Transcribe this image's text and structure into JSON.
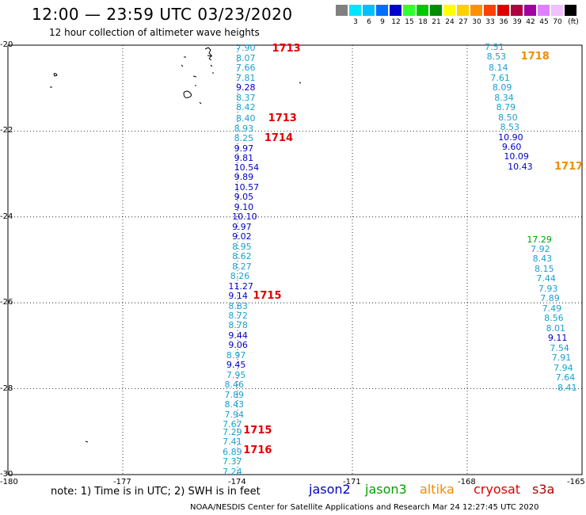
{
  "header": {
    "title": "12:00 — 23:59 UTC 03/23/2020",
    "subtitle": "12 hour collection of altimeter wave heights"
  },
  "color_scale": {
    "unit": "(ft)",
    "bins": [
      {
        "color": "#808080",
        "label": ""
      },
      {
        "color": "#00e5ff",
        "label": "3"
      },
      {
        "color": "#00bfff",
        "label": "6"
      },
      {
        "color": "#0070ff",
        "label": "9"
      },
      {
        "color": "#0000d0",
        "label": "12"
      },
      {
        "color": "#30ff30",
        "label": "15"
      },
      {
        "color": "#00c800",
        "label": "18"
      },
      {
        "color": "#008c00",
        "label": "21"
      },
      {
        "color": "#ffff00",
        "label": "24"
      },
      {
        "color": "#ffd000",
        "label": "27"
      },
      {
        "color": "#ff9000",
        "label": "30"
      },
      {
        "color": "#ff4000",
        "label": "33"
      },
      {
        "color": "#e00000",
        "label": "36"
      },
      {
        "color": "#b00040",
        "label": "39"
      },
      {
        "color": "#a000a0",
        "label": "42"
      },
      {
        "color": "#e080ff",
        "label": "45"
      },
      {
        "color": "#f0c0ff",
        "label": "70"
      },
      {
        "color": "#000000",
        "label": ""
      }
    ]
  },
  "axes": {
    "lat_labels": [
      "-20",
      "-22",
      "-24",
      "-26",
      "-28",
      "-30"
    ],
    "lon_labels": [
      "-180",
      "-177",
      "-174",
      "-171",
      "-168",
      "-165"
    ]
  },
  "colors": {
    "light": "#1aa0d0",
    "dark": "#0000c8",
    "green": "#00a000",
    "pass_red": "#e00000",
    "pass_orange": "#f08c00"
  },
  "observations": [
    {
      "t": "7.90",
      "c": "light",
      "lon": -174.0,
      "lat": -20.08
    },
    {
      "t": "8.07",
      "c": "light",
      "lon": -174.0,
      "lat": -20.31
    },
    {
      "t": "7.66",
      "c": "light",
      "lon": -174.0,
      "lat": -20.54
    },
    {
      "t": "7.81",
      "c": "light",
      "lon": -174.0,
      "lat": -20.77
    },
    {
      "t": "9.28",
      "c": "dark",
      "lon": -174.0,
      "lat": -21.0
    },
    {
      "t": "8.37",
      "c": "light",
      "lon": -174.0,
      "lat": -21.23
    },
    {
      "t": "8.42",
      "c": "light",
      "lon": -174.0,
      "lat": -21.46
    },
    {
      "t": "8.40",
      "c": "light",
      "lon": -174.0,
      "lat": -21.72
    },
    {
      "t": "8.93",
      "c": "light",
      "lon": -174.05,
      "lat": -21.95
    },
    {
      "t": "8.25",
      "c": "light",
      "lon": -174.05,
      "lat": -22.18
    },
    {
      "t": "9.97",
      "c": "dark",
      "lon": -174.05,
      "lat": -22.41
    },
    {
      "t": "9.81",
      "c": "dark",
      "lon": -174.05,
      "lat": -22.64
    },
    {
      "t": "10.54",
      "c": "dark",
      "lon": -174.05,
      "lat": -22.86
    },
    {
      "t": "9.89",
      "c": "dark",
      "lon": -174.05,
      "lat": -23.09
    },
    {
      "t": "10.57",
      "c": "dark",
      "lon": -174.05,
      "lat": -23.32
    },
    {
      "t": "9.05",
      "c": "dark",
      "lon": -174.05,
      "lat": -23.55
    },
    {
      "t": "9.10",
      "c": "dark",
      "lon": -174.05,
      "lat": -23.78
    },
    {
      "t": "10.10",
      "c": "dark",
      "lon": -174.1,
      "lat": -24.01
    },
    {
      "t": "9.97",
      "c": "dark",
      "lon": -174.1,
      "lat": -24.24
    },
    {
      "t": "9.02",
      "c": "dark",
      "lon": -174.1,
      "lat": -24.47
    },
    {
      "t": "8.95",
      "c": "light",
      "lon": -174.1,
      "lat": -24.7
    },
    {
      "t": "8.62",
      "c": "light",
      "lon": -174.1,
      "lat": -24.93
    },
    {
      "t": "8.27",
      "c": "light",
      "lon": -174.1,
      "lat": -25.16
    },
    {
      "t": "8.26",
      "c": "light",
      "lon": -174.15,
      "lat": -25.39
    },
    {
      "t": "11.27",
      "c": "dark",
      "lon": -174.2,
      "lat": -25.62
    },
    {
      "t": "9.14",
      "c": "dark",
      "lon": -174.2,
      "lat": -25.85
    },
    {
      "t": "8.83",
      "c": "light",
      "lon": -174.2,
      "lat": -26.08
    },
    {
      "t": "8.72",
      "c": "light",
      "lon": -174.2,
      "lat": -26.31
    },
    {
      "t": "8.78",
      "c": "light",
      "lon": -174.2,
      "lat": -26.54
    },
    {
      "t": "9.44",
      "c": "dark",
      "lon": -174.2,
      "lat": -26.77
    },
    {
      "t": "9.06",
      "c": "dark",
      "lon": -174.2,
      "lat": -27.0
    },
    {
      "t": "8.97",
      "c": "light",
      "lon": -174.25,
      "lat": -27.23
    },
    {
      "t": "9.45",
      "c": "dark",
      "lon": -174.25,
      "lat": -27.46
    },
    {
      "t": "7.95",
      "c": "light",
      "lon": -174.25,
      "lat": -27.69
    },
    {
      "t": "8.46",
      "c": "light",
      "lon": -174.3,
      "lat": -27.92
    },
    {
      "t": "7.89",
      "c": "light",
      "lon": -174.3,
      "lat": -28.15
    },
    {
      "t": "8.43",
      "c": "light",
      "lon": -174.3,
      "lat": -28.38
    },
    {
      "t": "7.94",
      "c": "light",
      "lon": -174.3,
      "lat": -28.61
    },
    {
      "t": "7.67",
      "c": "light",
      "lon": -174.35,
      "lat": -28.84
    },
    {
      "t": "7.29",
      "c": "light",
      "lon": -174.35,
      "lat": -29.02
    },
    {
      "t": "7.41",
      "c": "light",
      "lon": -174.35,
      "lat": -29.25
    },
    {
      "t": "6.89",
      "c": "light",
      "lon": -174.35,
      "lat": -29.48
    },
    {
      "t": "7.37",
      "c": "light",
      "lon": -174.35,
      "lat": -29.71
    },
    {
      "t": "7.24",
      "c": "light",
      "lon": -174.35,
      "lat": -29.94
    },
    {
      "t": "7.51",
      "c": "light",
      "lon": -167.5,
      "lat": -20.05
    },
    {
      "t": "8.53",
      "c": "light",
      "lon": -167.45,
      "lat": -20.28
    },
    {
      "t": "8.14",
      "c": "light",
      "lon": -167.4,
      "lat": -20.54
    },
    {
      "t": "7.61",
      "c": "light",
      "lon": -167.35,
      "lat": -20.77
    },
    {
      "t": "8.09",
      "c": "light",
      "lon": -167.3,
      "lat": -21.0
    },
    {
      "t": "8.34",
      "c": "light",
      "lon": -167.25,
      "lat": -21.23
    },
    {
      "t": "8.79",
      "c": "light",
      "lon": -167.2,
      "lat": -21.46
    },
    {
      "t": "8.50",
      "c": "light",
      "lon": -167.15,
      "lat": -21.69
    },
    {
      "t": "8.53",
      "c": "light",
      "lon": -167.1,
      "lat": -21.92
    },
    {
      "t": "10.90",
      "c": "dark",
      "lon": -167.15,
      "lat": -22.15
    },
    {
      "t": "9.60",
      "c": "dark",
      "lon": -167.05,
      "lat": -22.38
    },
    {
      "t": "10.09",
      "c": "dark",
      "lon": -167.0,
      "lat": -22.61
    },
    {
      "t": "10.43",
      "c": "dark",
      "lon": -166.9,
      "lat": -22.84
    },
    {
      "t": "17.29",
      "c": "green",
      "lon": -166.4,
      "lat": -24.53
    },
    {
      "t": "7.92",
      "c": "light",
      "lon": -166.3,
      "lat": -24.76
    },
    {
      "t": "8.43",
      "c": "light",
      "lon": -166.25,
      "lat": -24.99
    },
    {
      "t": "8.15",
      "c": "light",
      "lon": -166.2,
      "lat": -25.22
    },
    {
      "t": "7.44",
      "c": "light",
      "lon": -166.15,
      "lat": -25.45
    },
    {
      "t": "7.93",
      "c": "light",
      "lon": -166.1,
      "lat": -25.68
    },
    {
      "t": "7.89",
      "c": "light",
      "lon": -166.05,
      "lat": -25.91
    },
    {
      "t": "7.49",
      "c": "light",
      "lon": -166.0,
      "lat": -26.14
    },
    {
      "t": "8.56",
      "c": "light",
      "lon": -165.95,
      "lat": -26.37
    },
    {
      "t": "8.01",
      "c": "light",
      "lon": -165.9,
      "lat": -26.6
    },
    {
      "t": "9.11",
      "c": "dark",
      "lon": -165.85,
      "lat": -26.83
    },
    {
      "t": "7.54",
      "c": "light",
      "lon": -165.8,
      "lat": -27.06
    },
    {
      "t": "7.91",
      "c": "light",
      "lon": -165.75,
      "lat": -27.29
    },
    {
      "t": "7.94",
      "c": "light",
      "lon": -165.7,
      "lat": -27.52
    },
    {
      "t": "7.64",
      "c": "light",
      "lon": -165.65,
      "lat": -27.75
    },
    {
      "t": "8.41",
      "c": "light",
      "lon": -165.6,
      "lat": -27.98
    }
  ],
  "pass_times": [
    {
      "t": "1713",
      "c": "pass_red",
      "lon": -173.1,
      "lat": -20.1
    },
    {
      "t": "1713",
      "c": "pass_red",
      "lon": -173.2,
      "lat": -21.72
    },
    {
      "t": "1714",
      "c": "pass_red",
      "lon": -173.3,
      "lat": -22.18
    },
    {
      "t": "1715",
      "c": "pass_red",
      "lon": -173.6,
      "lat": -25.85
    },
    {
      "t": "1715",
      "c": "pass_red",
      "lon": -173.85,
      "lat": -28.98
    },
    {
      "t": "1716",
      "c": "pass_red",
      "lon": -173.85,
      "lat": -29.45
    },
    {
      "t": "1718",
      "c": "pass_orange",
      "lon": -166.6,
      "lat": -20.28
    },
    {
      "t": "1717",
      "c": "pass_orange",
      "lon": -165.7,
      "lat": -22.84
    }
  ],
  "footer": {
    "note": "note:  1) Time is in UTC; 2) SWH is in feet",
    "satellites": [
      {
        "name": "jason2",
        "color": "#0000c8"
      },
      {
        "name": "jason3",
        "color": "#00a000"
      },
      {
        "name": "altika",
        "color": "#f08c00"
      },
      {
        "name": "cryosat",
        "color": "#e00000"
      },
      {
        "name": "s3a",
        "color": "#b00000"
      }
    ],
    "credit": "NOAA/NESDIS Center for Satellite Applications and Research    Mar 24 12:27:45 UTC 2020"
  }
}
